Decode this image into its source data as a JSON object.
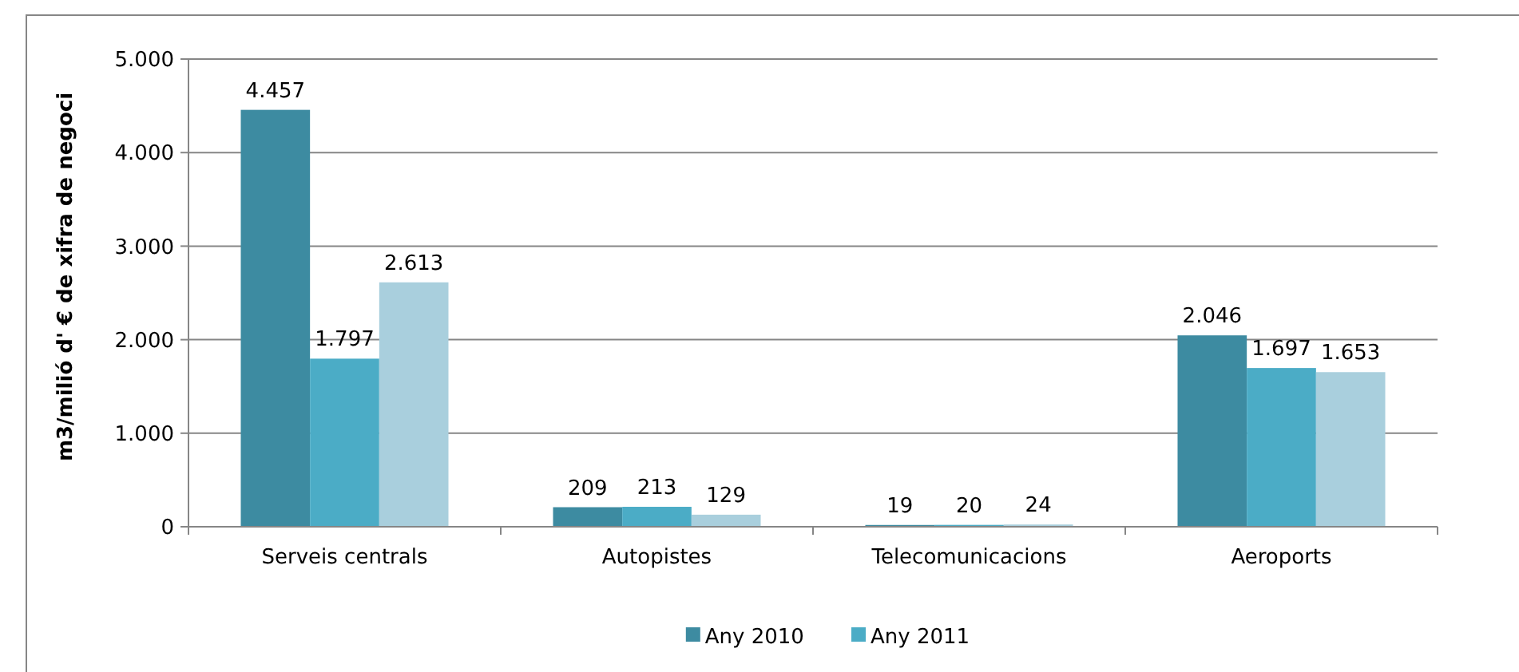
{
  "chart_data": {
    "type": "bar",
    "ylabel": "m3/milió d' € de xifra de negoci",
    "categories": [
      "Serveis centrals",
      "Autopistes",
      "Telecomunicacions",
      "Aeroports"
    ],
    "series": [
      {
        "name": "Any 2010",
        "color": "#3d8ba1",
        "values": [
          4457,
          209,
          19,
          2046
        ],
        "value_labels": [
          "4.457",
          "209",
          "19",
          "2.046"
        ]
      },
      {
        "name": "Any 2011",
        "color": "#4bacc6",
        "values": [
          1797,
          213,
          20,
          1697
        ],
        "value_labels": [
          "1.797",
          "213",
          "20",
          "1.697"
        ]
      },
      {
        "color": "#a9cfdd",
        "values": [
          2613,
          129,
          24,
          1653
        ],
        "value_labels": [
          "2.613",
          "129",
          "24",
          "1.653"
        ]
      }
    ],
    "ylim": [
      0,
      5000
    ],
    "yticks": [
      0,
      {
        "value": 1000,
        "label": "1.000"
      },
      {
        "value": 2000,
        "label": "2.000"
      },
      {
        "value": 3000,
        "label": "3.000"
      },
      {
        "value": 4000,
        "label": "4.000"
      },
      {
        "value": 5000,
        "label": "5.000"
      }
    ],
    "grid": "y",
    "legend": "bottom"
  }
}
